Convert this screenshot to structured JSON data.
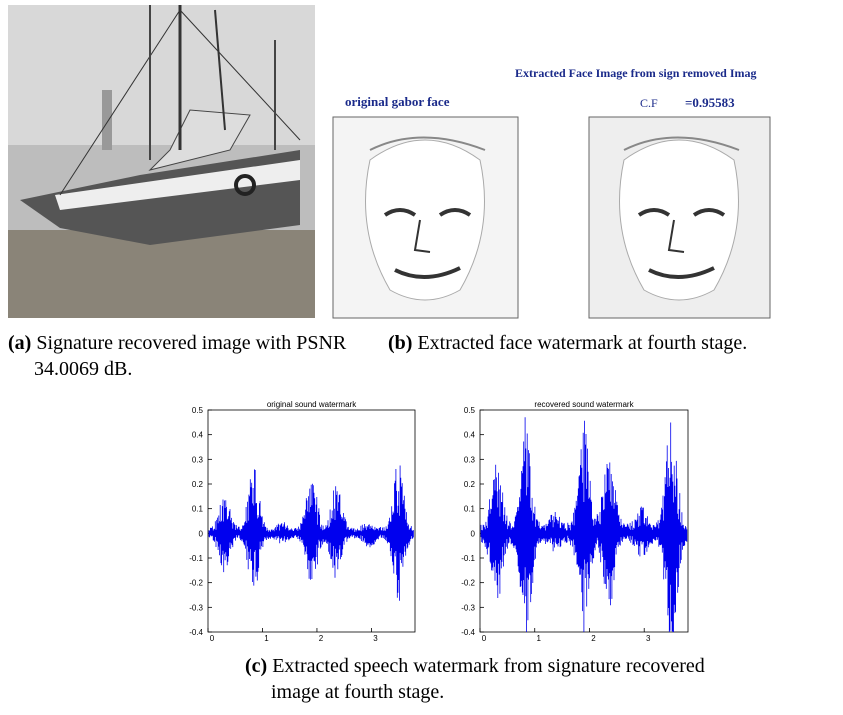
{
  "subfigures": [
    {
      "label": "(a)",
      "caption": "Signature recovered image with PSNR 34.0069 dB."
    },
    {
      "label": "(b)",
      "caption": "Extracted face watermark at fourth stage.",
      "header": "Extracted Face Image from sign removed Imag",
      "left_title": "original gabor face",
      "cf_label": "C.F",
      "cf_value": "=0.95583"
    },
    {
      "label": "(c)",
      "caption": "Extracted speech watermark from signature recovered image at fourth stage.",
      "plots": [
        {
          "title": "original sound watermark",
          "ylim": [
            -0.4,
            0.5
          ],
          "yticks": [
            0.5,
            0.4,
            0.3,
            0.2,
            0.1,
            0,
            -0.1,
            -0.2,
            -0.3,
            -0.4
          ],
          "xlim": [
            0,
            3.8
          ],
          "xticks": [
            0,
            1,
            2,
            3
          ]
        },
        {
          "title": "recovered sound watermark",
          "ylim": [
            -0.4,
            0.5
          ],
          "yticks": [
            0.5,
            0.4,
            0.3,
            0.2,
            0.1,
            0,
            -0.1,
            -0.2,
            -0.3,
            -0.4
          ],
          "xlim": [
            0,
            3.8
          ],
          "xticks": [
            0,
            1,
            2,
            3
          ]
        }
      ]
    }
  ]
}
